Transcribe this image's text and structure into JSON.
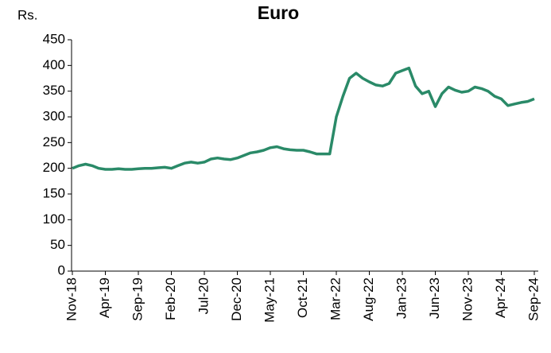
{
  "chart_data": {
    "type": "line",
    "title": "Euro",
    "y_label": "Rs.",
    "categories": [
      "Nov-18",
      null,
      null,
      null,
      null,
      "Apr-19",
      null,
      null,
      null,
      null,
      "Sep-19",
      null,
      null,
      null,
      null,
      "Feb-20",
      null,
      null,
      null,
      null,
      "Jul-20",
      null,
      null,
      null,
      null,
      "Dec-20",
      null,
      null,
      null,
      null,
      "May-21",
      null,
      null,
      null,
      null,
      "Oct-21",
      null,
      null,
      null,
      null,
      "Mar-22",
      null,
      null,
      null,
      null,
      "Aug-22",
      null,
      null,
      null,
      null,
      "Jan-23",
      null,
      null,
      null,
      null,
      "Jun-23",
      null,
      null,
      null,
      null,
      "Nov-23",
      null,
      null,
      null,
      null,
      "Apr-24",
      null,
      null,
      null,
      null,
      "Sep-24"
    ],
    "series": [
      {
        "name": "Euro",
        "color": "#2a8a68",
        "values": [
          200,
          205,
          208,
          205,
          200,
          198,
          198,
          199,
          198,
          198,
          199,
          200,
          200,
          201,
          202,
          200,
          205,
          210,
          212,
          210,
          212,
          218,
          220,
          218,
          217,
          220,
          225,
          230,
          232,
          235,
          240,
          242,
          238,
          236,
          235,
          235,
          232,
          228,
          228,
          228,
          300,
          340,
          375,
          385,
          375,
          368,
          362,
          360,
          365,
          385,
          390,
          395,
          360,
          345,
          350,
          320,
          345,
          358,
          352,
          348,
          350,
          358,
          355,
          350,
          340,
          335,
          322,
          325,
          328,
          330,
          335
        ]
      }
    ],
    "ylim": [
      0,
      450
    ],
    "yticks": [
      0,
      50,
      100,
      150,
      200,
      250,
      300,
      350,
      400,
      450
    ],
    "grid": false
  }
}
